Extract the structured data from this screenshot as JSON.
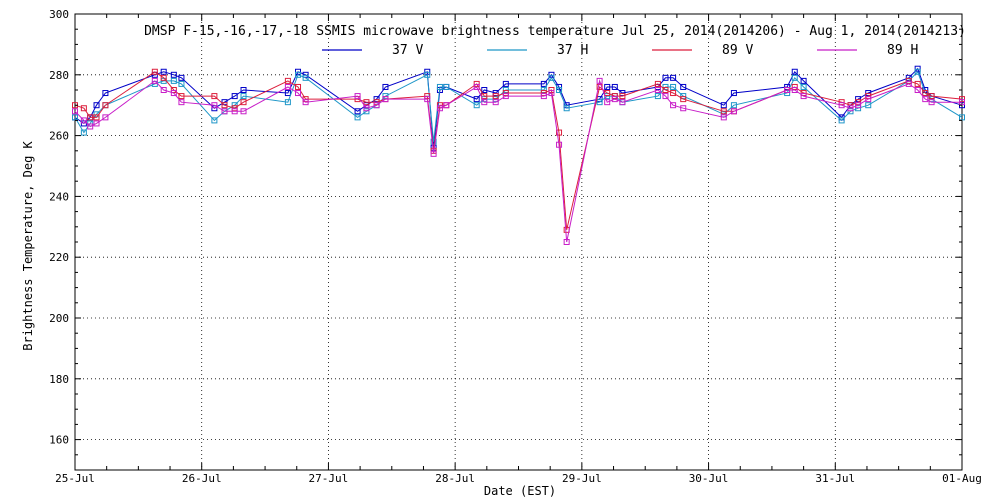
{
  "chart_data": {
    "type": "line",
    "title": "DMSP F-15,-16,-17,-18 SSMIS microwave brightness temperature Jul 25, 2014(2014206) - Aug  1, 2014(2014213)",
    "xlabel": "Date (EST)",
    "ylabel": "Brightness Temperature, Deg K",
    "xlim": [
      "25-Jul",
      "01-Aug"
    ],
    "ylim": [
      150,
      300
    ],
    "x_ticks": [
      "25-Jul",
      "26-Jul",
      "27-Jul",
      "28-Jul",
      "29-Jul",
      "30-Jul",
      "31-Jul",
      "01-Aug"
    ],
    "y_ticks": [
      160,
      180,
      200,
      220,
      240,
      260,
      280,
      300
    ],
    "grid": true,
    "legend_position": "top-center",
    "series": [
      {
        "name": "37 V",
        "color": "#0000c8",
        "points": [
          [
            0.0,
            266
          ],
          [
            0.07,
            264
          ],
          [
            0.12,
            266
          ],
          [
            0.17,
            270
          ],
          [
            0.24,
            274
          ],
          [
            0.63,
            280
          ],
          [
            0.7,
            281
          ],
          [
            0.78,
            280
          ],
          [
            0.84,
            279
          ],
          [
            1.1,
            269
          ],
          [
            1.18,
            271
          ],
          [
            1.26,
            273
          ],
          [
            1.33,
            275
          ],
          [
            1.68,
            274
          ],
          [
            1.76,
            281
          ],
          [
            1.82,
            280
          ],
          [
            2.23,
            268
          ],
          [
            2.3,
            270
          ],
          [
            2.38,
            272
          ],
          [
            2.45,
            276
          ],
          [
            2.78,
            281
          ],
          [
            2.83,
            256
          ],
          [
            2.88,
            275
          ],
          [
            2.93,
            276
          ],
          [
            3.17,
            272
          ],
          [
            3.23,
            275
          ],
          [
            3.32,
            274
          ],
          [
            3.4,
            277
          ],
          [
            3.7,
            277
          ],
          [
            3.76,
            280
          ],
          [
            3.82,
            276
          ],
          [
            3.88,
            270
          ],
          [
            4.14,
            272
          ],
          [
            4.2,
            276
          ],
          [
            4.26,
            276
          ],
          [
            4.32,
            274
          ],
          [
            4.6,
            276
          ],
          [
            4.66,
            279
          ],
          [
            4.72,
            279
          ],
          [
            4.8,
            276
          ],
          [
            5.12,
            270
          ],
          [
            5.2,
            274
          ],
          [
            5.62,
            276
          ],
          [
            5.68,
            281
          ],
          [
            5.75,
            278
          ],
          [
            6.05,
            266
          ],
          [
            6.12,
            270
          ],
          [
            6.18,
            272
          ],
          [
            6.26,
            274
          ],
          [
            6.58,
            279
          ],
          [
            6.65,
            282
          ],
          [
            6.71,
            275
          ],
          [
            6.76,
            273
          ],
          [
            7.0,
            270
          ]
        ]
      },
      {
        "name": "37 H",
        "color": "#1e96c8",
        "points": [
          [
            0.0,
            266
          ],
          [
            0.07,
            261
          ],
          [
            0.12,
            264
          ],
          [
            0.17,
            267
          ],
          [
            0.24,
            270
          ],
          [
            0.63,
            277
          ],
          [
            0.7,
            278
          ],
          [
            0.78,
            278
          ],
          [
            0.84,
            277
          ],
          [
            1.1,
            265
          ],
          [
            1.18,
            268
          ],
          [
            1.26,
            270
          ],
          [
            1.33,
            273
          ],
          [
            1.68,
            271
          ],
          [
            1.76,
            280
          ],
          [
            1.82,
            279
          ],
          [
            2.23,
            266
          ],
          [
            2.3,
            268
          ],
          [
            2.38,
            270
          ],
          [
            2.45,
            273
          ],
          [
            2.78,
            280
          ],
          [
            2.83,
            258
          ],
          [
            2.88,
            276
          ],
          [
            2.93,
            276
          ],
          [
            3.17,
            270
          ],
          [
            3.23,
            272
          ],
          [
            3.32,
            272
          ],
          [
            3.4,
            275
          ],
          [
            3.7,
            275
          ],
          [
            3.76,
            279
          ],
          [
            3.82,
            275
          ],
          [
            3.88,
            269
          ],
          [
            4.14,
            271
          ],
          [
            4.2,
            273
          ],
          [
            4.26,
            273
          ],
          [
            4.32,
            271
          ],
          [
            4.6,
            273
          ],
          [
            4.66,
            276
          ],
          [
            4.72,
            276
          ],
          [
            4.8,
            273
          ],
          [
            5.12,
            267
          ],
          [
            5.2,
            270
          ],
          [
            5.62,
            274
          ],
          [
            5.68,
            279
          ],
          [
            5.75,
            276
          ],
          [
            6.05,
            265
          ],
          [
            6.12,
            268
          ],
          [
            6.18,
            269
          ],
          [
            6.26,
            270
          ],
          [
            6.58,
            278
          ],
          [
            6.65,
            281
          ],
          [
            6.71,
            274
          ],
          [
            6.76,
            272
          ],
          [
            7.0,
            266
          ]
        ]
      },
      {
        "name": "89 V",
        "color": "#dc1e3c",
        "points": [
          [
            0.0,
            270
          ],
          [
            0.07,
            269
          ],
          [
            0.12,
            266
          ],
          [
            0.17,
            266
          ],
          [
            0.24,
            270
          ],
          [
            0.63,
            281
          ],
          [
            0.7,
            279
          ],
          [
            0.78,
            275
          ],
          [
            0.84,
            273
          ],
          [
            1.1,
            273
          ],
          [
            1.18,
            270
          ],
          [
            1.26,
            269
          ],
          [
            1.33,
            271
          ],
          [
            1.68,
            278
          ],
          [
            1.76,
            276
          ],
          [
            1.82,
            272
          ],
          [
            2.23,
            272
          ],
          [
            2.3,
            271
          ],
          [
            2.38,
            271
          ],
          [
            2.45,
            272
          ],
          [
            2.78,
            273
          ],
          [
            2.83,
            255
          ],
          [
            2.88,
            270
          ],
          [
            2.93,
            270
          ],
          [
            3.17,
            277
          ],
          [
            3.23,
            273
          ],
          [
            3.32,
            273
          ],
          [
            3.4,
            274
          ],
          [
            3.7,
            274
          ],
          [
            3.76,
            275
          ],
          [
            3.82,
            261
          ],
          [
            3.88,
            229
          ],
          [
            4.14,
            276
          ],
          [
            4.2,
            274
          ],
          [
            4.26,
            273
          ],
          [
            4.32,
            273
          ],
          [
            4.6,
            277
          ],
          [
            4.66,
            275
          ],
          [
            4.72,
            274
          ],
          [
            4.8,
            272
          ],
          [
            5.12,
            268
          ],
          [
            5.2,
            268
          ],
          [
            5.62,
            275
          ],
          [
            5.68,
            276
          ],
          [
            5.75,
            274
          ],
          [
            6.05,
            271
          ],
          [
            6.12,
            270
          ],
          [
            6.18,
            271
          ],
          [
            6.26,
            273
          ],
          [
            6.58,
            278
          ],
          [
            6.65,
            277
          ],
          [
            6.71,
            274
          ],
          [
            6.76,
            273
          ],
          [
            7.0,
            272
          ]
        ]
      },
      {
        "name": "89 H",
        "color": "#c81ec8",
        "points": [
          [
            0.0,
            268
          ],
          [
            0.07,
            265
          ],
          [
            0.12,
            263
          ],
          [
            0.17,
            264
          ],
          [
            0.24,
            266
          ],
          [
            0.63,
            278
          ],
          [
            0.7,
            275
          ],
          [
            0.78,
            274
          ],
          [
            0.84,
            271
          ],
          [
            1.1,
            270
          ],
          [
            1.18,
            268
          ],
          [
            1.26,
            268
          ],
          [
            1.33,
            268
          ],
          [
            1.68,
            276
          ],
          [
            1.76,
            274
          ],
          [
            1.82,
            271
          ],
          [
            2.23,
            273
          ],
          [
            2.3,
            269
          ],
          [
            2.38,
            270
          ],
          [
            2.45,
            272
          ],
          [
            2.78,
            272
          ],
          [
            2.83,
            254
          ],
          [
            2.88,
            269
          ],
          [
            2.93,
            270
          ],
          [
            3.17,
            276
          ],
          [
            3.23,
            271
          ],
          [
            3.32,
            271
          ],
          [
            3.4,
            273
          ],
          [
            3.7,
            273
          ],
          [
            3.76,
            274
          ],
          [
            3.82,
            257
          ],
          [
            3.88,
            225
          ],
          [
            4.14,
            278
          ],
          [
            4.2,
            271
          ],
          [
            4.26,
            272
          ],
          [
            4.32,
            271
          ],
          [
            4.6,
            275
          ],
          [
            4.66,
            273
          ],
          [
            4.72,
            270
          ],
          [
            4.8,
            269
          ],
          [
            5.12,
            266
          ],
          [
            5.2,
            268
          ],
          [
            5.62,
            275
          ],
          [
            5.68,
            275
          ],
          [
            5.75,
            273
          ],
          [
            6.05,
            270
          ],
          [
            6.12,
            269
          ],
          [
            6.18,
            270
          ],
          [
            6.26,
            272
          ],
          [
            6.58,
            277
          ],
          [
            6.65,
            275
          ],
          [
            6.71,
            272
          ],
          [
            6.76,
            271
          ],
          [
            7.0,
            271
          ]
        ]
      }
    ]
  }
}
